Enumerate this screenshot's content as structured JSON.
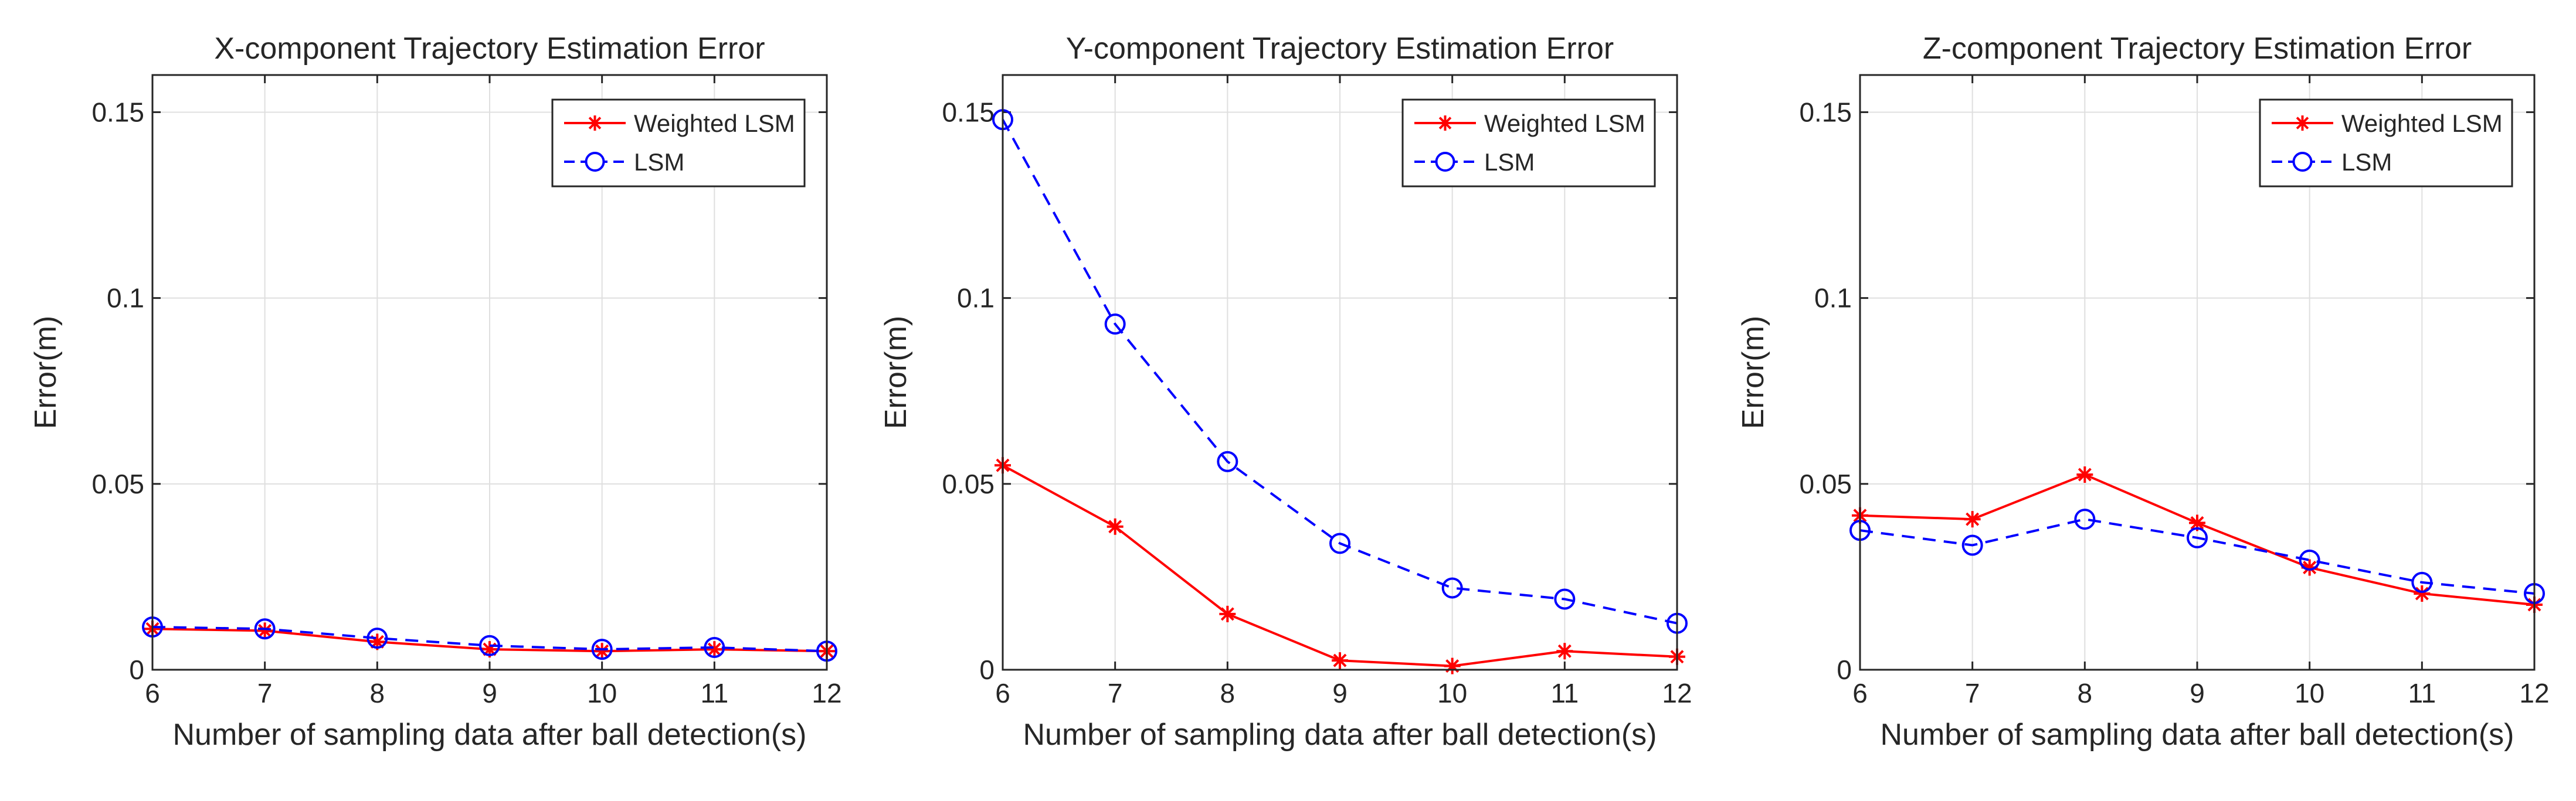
{
  "chart_data": [
    {
      "type": "line",
      "title": "X-component Trajectory Estimation Error",
      "xlabel": "Number of sampling data after ball detection(s)",
      "ylabel": "Error(m)",
      "x": [
        6,
        7,
        8,
        9,
        10,
        11,
        12
      ],
      "xlim": [
        6,
        12
      ],
      "ylim": [
        0,
        0.16
      ],
      "xticks": [
        "6",
        "7",
        "8",
        "9",
        "10",
        "11",
        "12"
      ],
      "yticks": [
        {
          "value": 0,
          "label": "0"
        },
        {
          "value": 0.05,
          "label": "0.05"
        },
        {
          "value": 0.1,
          "label": "0.1"
        },
        {
          "value": 0.15,
          "label": "0.15"
        }
      ],
      "grid": true,
      "legend_position": "top-right",
      "series": [
        {
          "name": "Weighted LSM",
          "color": "#ff0000",
          "line": "solid",
          "marker": "star",
          "values": [
            0.011,
            0.0105,
            0.0075,
            0.0055,
            0.005,
            0.0055,
            0.005
          ]
        },
        {
          "name": "LSM",
          "color": "#0000ff",
          "line": "dashed",
          "marker": "circle",
          "values": [
            0.0115,
            0.011,
            0.0085,
            0.0065,
            0.0055,
            0.006,
            0.005
          ]
        }
      ]
    },
    {
      "type": "line",
      "title": "Y-component Trajectory Estimation Error",
      "xlabel": "Number of sampling data after ball detection(s)",
      "ylabel": "Error(m)",
      "x": [
        6,
        7,
        8,
        9,
        10,
        11,
        12
      ],
      "xlim": [
        6,
        12
      ],
      "ylim": [
        0,
        0.16
      ],
      "xticks": [
        "6",
        "7",
        "8",
        "9",
        "10",
        "11",
        "12"
      ],
      "yticks": [
        {
          "value": 0,
          "label": "0"
        },
        {
          "value": 0.05,
          "label": "0.05"
        },
        {
          "value": 0.1,
          "label": "0.1"
        },
        {
          "value": 0.15,
          "label": "0.15"
        }
      ],
      "grid": true,
      "legend_position": "top-right",
      "series": [
        {
          "name": "Weighted LSM",
          "color": "#ff0000",
          "line": "solid",
          "marker": "star",
          "values": [
            0.055,
            0.0385,
            0.015,
            0.0025,
            0.001,
            0.005,
            0.0035
          ]
        },
        {
          "name": "LSM",
          "color": "#0000ff",
          "line": "dashed",
          "marker": "circle",
          "values": [
            0.148,
            0.093,
            0.056,
            0.034,
            0.022,
            0.019,
            0.0125
          ]
        }
      ]
    },
    {
      "type": "line",
      "title": "Z-component Trajectory Estimation Error",
      "xlabel": "Number of sampling data after ball detection(s)",
      "ylabel": "Error(m)",
      "x": [
        6,
        7,
        8,
        9,
        10,
        11,
        12
      ],
      "xlim": [
        6,
        12
      ],
      "ylim": [
        0,
        0.16
      ],
      "xticks": [
        "6",
        "7",
        "8",
        "9",
        "10",
        "11",
        "12"
      ],
      "yticks": [
        {
          "value": 0,
          "label": "0"
        },
        {
          "value": 0.05,
          "label": "0.05"
        },
        {
          "value": 0.1,
          "label": "0.1"
        },
        {
          "value": 0.15,
          "label": "0.15"
        }
      ],
      "grid": true,
      "legend_position": "top-right",
      "series": [
        {
          "name": "Weighted LSM",
          "color": "#ff0000",
          "line": "solid",
          "marker": "star",
          "values": [
            0.0415,
            0.0405,
            0.0525,
            0.0395,
            0.0275,
            0.0205,
            0.0175
          ]
        },
        {
          "name": "LSM",
          "color": "#0000ff",
          "line": "dashed",
          "marker": "circle",
          "values": [
            0.0375,
            0.0335,
            0.0405,
            0.0355,
            0.0295,
            0.0235,
            0.0205
          ]
        }
      ]
    }
  ]
}
